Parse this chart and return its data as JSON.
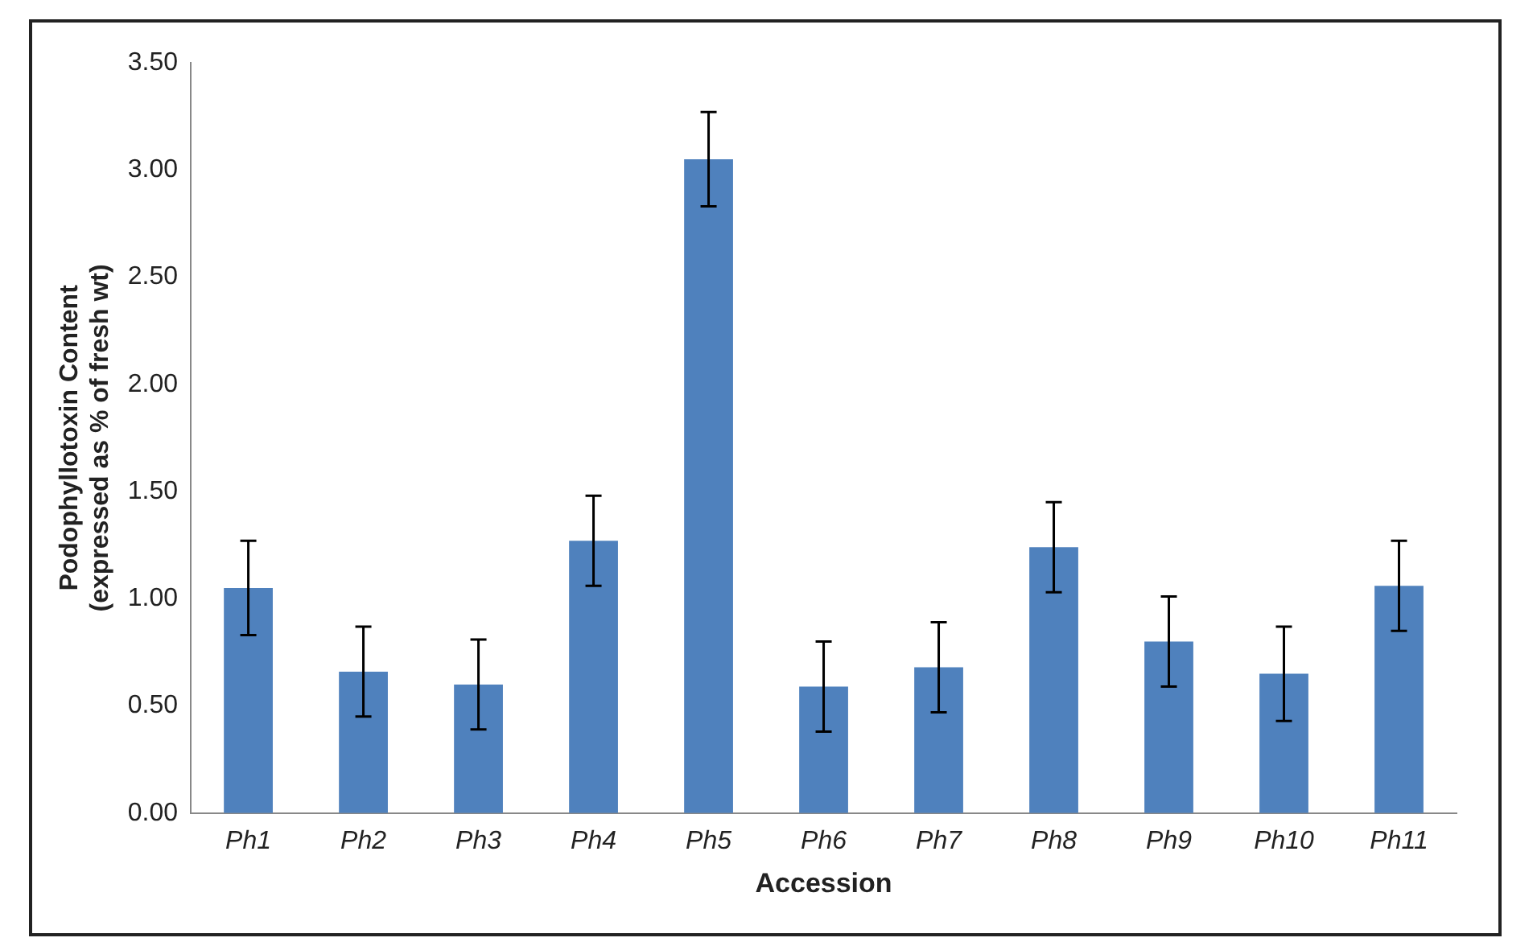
{
  "chart_data": {
    "type": "bar",
    "xlabel": "Accession",
    "ylabel": "Podophyllotoxin Content (expressed as % of fresh wt)",
    "categories": [
      "Ph1",
      "Ph2",
      "Ph3",
      "Ph4",
      "Ph5",
      "Ph6",
      "Ph7",
      "Ph8",
      "Ph9",
      "Ph10",
      "Ph11"
    ],
    "values": [
      1.05,
      0.66,
      0.6,
      1.27,
      3.05,
      0.59,
      0.68,
      1.24,
      0.8,
      0.65,
      1.06
    ],
    "errors": [
      0.22,
      0.21,
      0.21,
      0.21,
      0.22,
      0.21,
      0.21,
      0.21,
      0.21,
      0.22,
      0.21
    ],
    "color": "#4f81bd",
    "ylim": [
      0,
      3.5
    ],
    "yticks": [
      {
        "value": 0,
        "label": "0.00"
      },
      {
        "value": 0.5,
        "label": "0.50"
      },
      {
        "value": 1,
        "label": "1.00"
      },
      {
        "value": 1.5,
        "label": "1.50"
      },
      {
        "value": 2,
        "label": "2.00"
      },
      {
        "value": 2.5,
        "label": "2.50"
      },
      {
        "value": 3,
        "label": "3.00"
      },
      {
        "value": 3.5,
        "label": "3.50"
      }
    ],
    "grid": false,
    "legend": false
  }
}
